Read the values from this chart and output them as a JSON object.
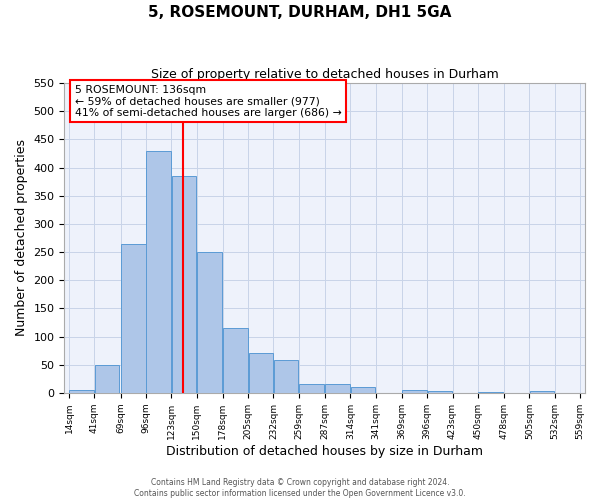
{
  "title": "5, ROSEMOUNT, DURHAM, DH1 5GA",
  "subtitle": "Size of property relative to detached houses in Durham",
  "xlabel": "Distribution of detached houses by size in Durham",
  "ylabel": "Number of detached properties",
  "bar_left_edges": [
    14,
    41,
    69,
    96,
    123,
    150,
    178,
    205,
    232,
    259,
    287,
    314,
    341,
    369,
    396,
    423,
    450,
    478,
    505,
    532
  ],
  "bar_heights": [
    5,
    50,
    265,
    430,
    385,
    250,
    115,
    70,
    58,
    16,
    15,
    10,
    0,
    5,
    3,
    0,
    2,
    0,
    3,
    0
  ],
  "bin_width": 27,
  "bar_color": "#aec6e8",
  "bar_edge_color": "#5b9bd5",
  "grid_color": "#c8d4e8",
  "background_color": "#eef2fb",
  "vline_x": 136,
  "vline_color": "red",
  "annotation_title": "5 ROSEMOUNT: 136sqm",
  "annotation_line1": "← 59% of detached houses are smaller (977)",
  "annotation_line2": "41% of semi-detached houses are larger (686) →",
  "annotation_box_color": "white",
  "annotation_box_edge_color": "red",
  "ylim": [
    0,
    550
  ],
  "yticks": [
    0,
    50,
    100,
    150,
    200,
    250,
    300,
    350,
    400,
    450,
    500,
    550
  ],
  "tick_labels": [
    "14sqm",
    "41sqm",
    "69sqm",
    "96sqm",
    "123sqm",
    "150sqm",
    "178sqm",
    "205sqm",
    "232sqm",
    "259sqm",
    "287sqm",
    "314sqm",
    "341sqm",
    "369sqm",
    "396sqm",
    "423sqm",
    "450sqm",
    "478sqm",
    "505sqm",
    "532sqm",
    "559sqm"
  ],
  "footer_line1": "Contains HM Land Registry data © Crown copyright and database right 2024.",
  "footer_line2": "Contains public sector information licensed under the Open Government Licence v3.0."
}
